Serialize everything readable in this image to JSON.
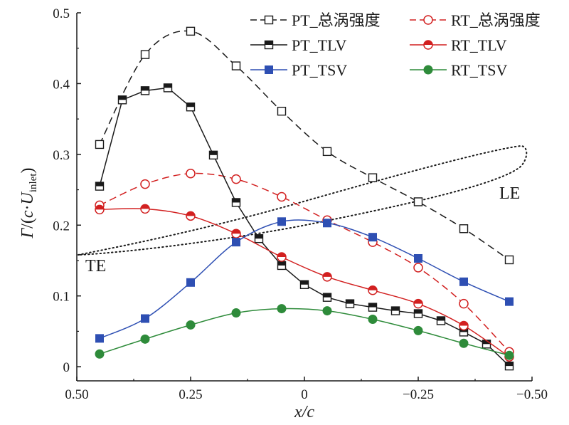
{
  "chart_data": {
    "type": "line",
    "xlabel": "x/c",
    "ylabel": "Γ/(c·U_inlet)",
    "ylabel_parts": {
      "gamma": "Γ",
      "mid": "/(",
      "c": "c",
      "dot": "·",
      "U": "U",
      "sub": "inlet",
      "close": ")"
    },
    "xlim": [
      0.5,
      -0.5
    ],
    "ylim": [
      -0.02,
      0.5
    ],
    "x_ticks": [
      0.5,
      0.25,
      0,
      -0.25,
      -0.5
    ],
    "x_tick_labels": [
      "0.50",
      "0.25",
      "0",
      "−0.25",
      "−0.50"
    ],
    "y_ticks": [
      0,
      0.1,
      0.2,
      0.3,
      0.4,
      0.5
    ],
    "y_tick_labels": [
      "0",
      "0.1",
      "0.2",
      "0.3",
      "0.4",
      "0.5"
    ],
    "annotations": [
      {
        "text": "LE",
        "x": -0.22,
        "y": 0.22
      },
      {
        "text": "TE",
        "x": 0.45,
        "y": 0.115
      }
    ],
    "legend_placement": "top-right",
    "series": [
      {
        "name": "PT_总涡强度",
        "color": "#1a1a1a",
        "marker": "square-open",
        "dash": "10,6",
        "smooth": true,
        "x": [
          0.45,
          0.35,
          0.25,
          0.15,
          0.05,
          -0.05,
          -0.15,
          -0.25,
          -0.35,
          -0.45
        ],
        "y": [
          0.314,
          0.441,
          0.474,
          0.425,
          0.361,
          0.304,
          0.267,
          0.233,
          0.195,
          0.151
        ]
      },
      {
        "name": "RT_总涡强度",
        "color": "#d22020",
        "marker": "circle-open",
        "dash": "10,6",
        "smooth": true,
        "x": [
          0.45,
          0.35,
          0.25,
          0.15,
          0.05,
          -0.05,
          -0.15,
          -0.25,
          -0.35,
          -0.45
        ],
        "y": [
          0.228,
          0.258,
          0.273,
          0.265,
          0.24,
          0.207,
          0.176,
          0.14,
          0.089,
          0.021
        ]
      },
      {
        "name": "PT_TLV",
        "color": "#1a1a1a",
        "marker": "square-half",
        "dash": "",
        "smooth": false,
        "x": [
          0.45,
          0.4,
          0.35,
          0.3,
          0.25,
          0.2,
          0.15,
          0.1,
          0.05,
          0,
          -0.05,
          -0.1,
          -0.15,
          -0.2,
          -0.25,
          -0.3,
          -0.35,
          -0.4,
          -0.45
        ],
        "y": [
          0.255,
          0.377,
          0.39,
          0.394,
          0.367,
          0.299,
          0.232,
          0.181,
          0.143,
          0.116,
          0.098,
          0.089,
          0.084,
          0.079,
          0.075,
          0.065,
          0.049,
          0.032,
          0.001
        ]
      },
      {
        "name": "RT_TLV",
        "color": "#d22020",
        "marker": "circle-half",
        "dash": "",
        "smooth": true,
        "x": [
          0.45,
          0.35,
          0.25,
          0.15,
          0.05,
          -0.05,
          -0.15,
          -0.25,
          -0.35,
          -0.45
        ],
        "y": [
          0.222,
          0.223,
          0.213,
          0.188,
          0.155,
          0.127,
          0.108,
          0.089,
          0.058,
          0.014
        ]
      },
      {
        "name": "PT_TSV",
        "color": "#2e4fb3",
        "marker": "square-filled",
        "dash": "",
        "smooth": true,
        "x": [
          0.45,
          0.35,
          0.25,
          0.15,
          0.05,
          -0.05,
          -0.15,
          -0.25,
          -0.35,
          -0.45
        ],
        "y": [
          0.04,
          0.068,
          0.119,
          0.176,
          0.205,
          0.203,
          0.183,
          0.153,
          0.12,
          0.092
        ]
      },
      {
        "name": "RT_TSV",
        "color": "#2e8b3a",
        "marker": "circle-filled",
        "dash": "",
        "smooth": true,
        "x": [
          0.45,
          0.35,
          0.25,
          0.15,
          0.05,
          -0.05,
          -0.15,
          -0.25,
          -0.35,
          -0.45
        ],
        "y": [
          0.018,
          0.039,
          0.059,
          0.076,
          0.082,
          0.079,
          0.067,
          0.051,
          0.033,
          0.016
        ]
      }
    ]
  }
}
